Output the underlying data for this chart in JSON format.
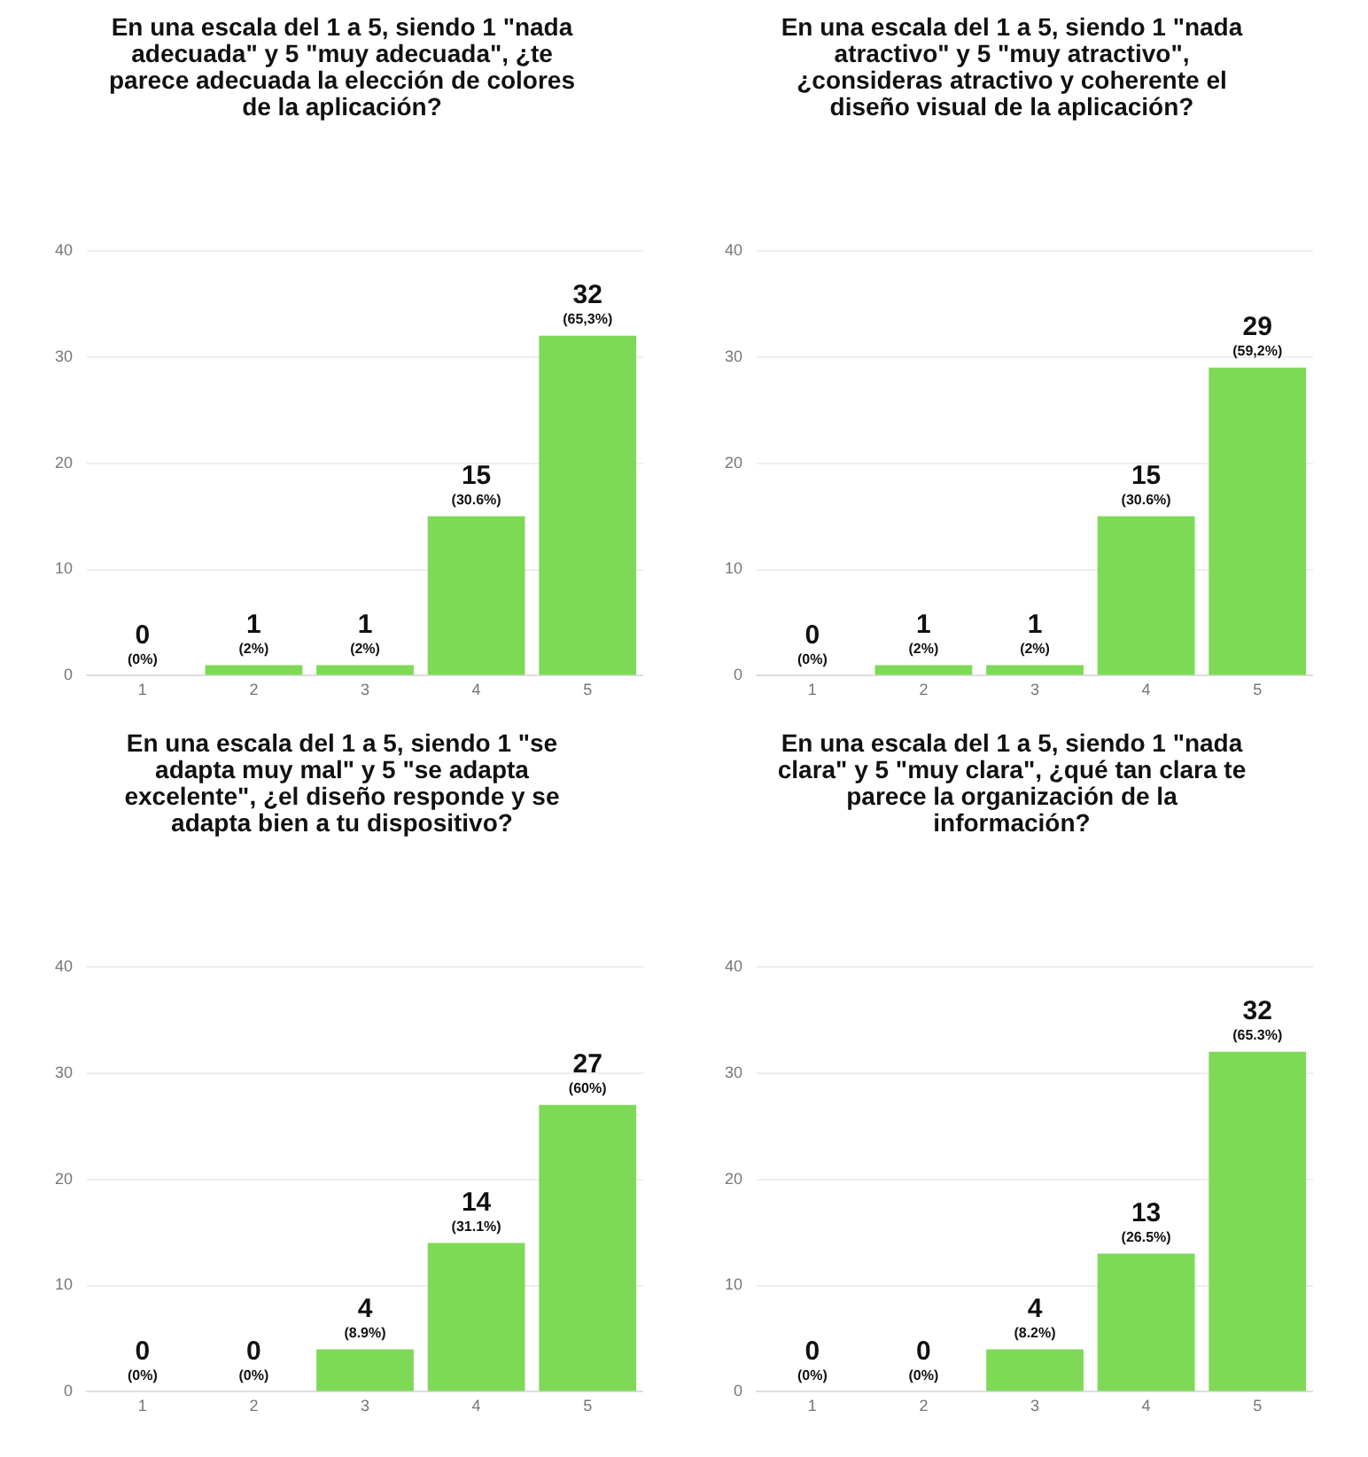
{
  "chart_data": [
    {
      "type": "bar",
      "title": "En una escala del 1 a 5, siendo 1 \"nada adecuada\" y 5 \"muy adecuada\", ¿te parece adecuada la elección de colores de la aplicación?",
      "categories": [
        "1",
        "2",
        "3",
        "4",
        "5"
      ],
      "values": [
        0,
        1,
        1,
        15,
        32
      ],
      "color": "#7ed957",
      "ylim": [
        0,
        40
      ],
      "yticks": [
        0,
        10,
        20,
        30,
        40
      ],
      "grid": "y",
      "value_labels": [
        "0",
        "1",
        "1",
        "15",
        "32"
      ],
      "annotations": [
        {
          "text": "(0%)",
          "x": "1",
          "y": 0
        },
        {
          "text": "(2%)",
          "x": "2",
          "y": 1
        },
        {
          "text": "(2%)",
          "x": "3",
          "y": 1
        },
        {
          "text": "(30.6%)",
          "x": "4",
          "y": 15
        },
        {
          "text": "(65,3%)",
          "x": "5",
          "y": 32
        }
      ]
    },
    {
      "type": "bar",
      "title": "En una escala del 1 a 5, siendo 1 \"nada atractivo\" y 5 \"muy atractivo\", ¿consideras atractivo y coherente el diseño visual de la aplicación?",
      "categories": [
        "1",
        "2",
        "3",
        "4",
        "5"
      ],
      "values": [
        0,
        1,
        1,
        15,
        29
      ],
      "color": "#7ed957",
      "ylim": [
        0,
        40
      ],
      "yticks": [
        0,
        10,
        20,
        30,
        40
      ],
      "grid": "y",
      "value_labels": [
        "0",
        "1",
        "1",
        "15",
        "29"
      ],
      "annotations": [
        {
          "text": "(0%)",
          "x": "1",
          "y": 0
        },
        {
          "text": "(2%)",
          "x": "2",
          "y": 1
        },
        {
          "text": "(2%)",
          "x": "3",
          "y": 1
        },
        {
          "text": "(30.6%)",
          "x": "4",
          "y": 15
        },
        {
          "text": "(59,2%)",
          "x": "5",
          "y": 29
        }
      ]
    },
    {
      "type": "bar",
      "title": "En una escala del 1 a 5, siendo 1 \"se adapta muy mal\" y 5 \"se adapta excelente\", ¿el diseño responde y se adapta bien a tu dispositivo?",
      "categories": [
        "1",
        "2",
        "3",
        "4",
        "5"
      ],
      "values": [
        0,
        0,
        4,
        14,
        27
      ],
      "color": "#7ed957",
      "ylim": [
        0,
        40
      ],
      "yticks": [
        0,
        10,
        20,
        30,
        40
      ],
      "grid": "y",
      "value_labels": [
        "0",
        "0",
        "4",
        "14",
        "27"
      ],
      "annotations": [
        {
          "text": "(0%)",
          "x": "1",
          "y": 0
        },
        {
          "text": "(0%)",
          "x": "2",
          "y": 0
        },
        {
          "text": "(8.9%)",
          "x": "3",
          "y": 4
        },
        {
          "text": "(31.1%)",
          "x": "4",
          "y": 14
        },
        {
          "text": "(60%)",
          "x": "5",
          "y": 27
        }
      ]
    },
    {
      "type": "bar",
      "title": "En una escala del 1 a 5, siendo 1 \"nada clara\" y 5 \"muy clara\", ¿qué tan clara te parece la organización de la información?",
      "categories": [
        "1",
        "2",
        "3",
        "4",
        "5"
      ],
      "values": [
        0,
        0,
        4,
        13,
        32
      ],
      "color": "#7ed957",
      "ylim": [
        0,
        40
      ],
      "yticks": [
        0,
        10,
        20,
        30,
        40
      ],
      "grid": "y",
      "value_labels": [
        "0",
        "0",
        "4",
        "13",
        "32"
      ],
      "annotations": [
        {
          "text": "(0%)",
          "x": "1",
          "y": 0
        },
        {
          "text": "(0%)",
          "x": "2",
          "y": 0
        },
        {
          "text": "(8.2%)",
          "x": "3",
          "y": 4
        },
        {
          "text": "(26.5%)",
          "x": "4",
          "y": 13
        },
        {
          "text": "(65.3%)",
          "x": "5",
          "y": 32
        }
      ]
    }
  ]
}
